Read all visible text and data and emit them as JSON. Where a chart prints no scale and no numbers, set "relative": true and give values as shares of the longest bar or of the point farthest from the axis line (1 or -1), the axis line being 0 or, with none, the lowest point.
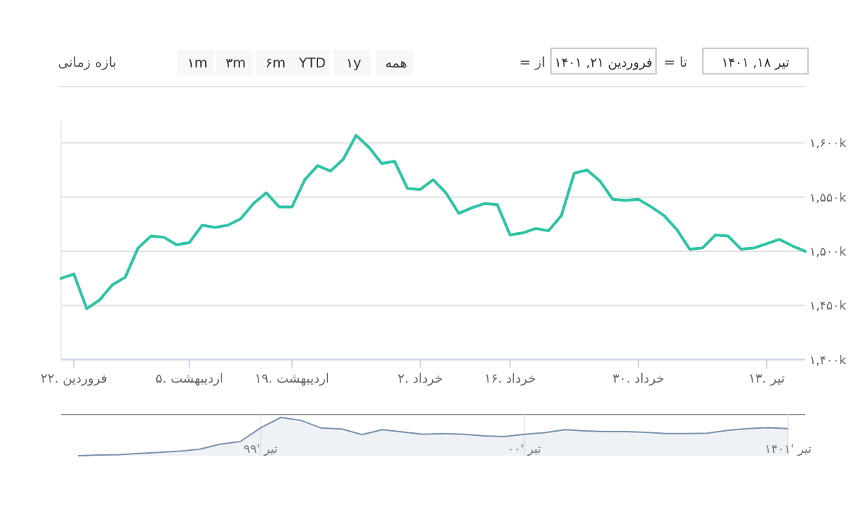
{
  "chart_data": [
    {
      "type": "line",
      "categories": [
        null,
        "۲۲. فروردین",
        null,
        null,
        null,
        null,
        null,
        null,
        null,
        null,
        "۵. اردیبهشت",
        null,
        null,
        null,
        null,
        null,
        null,
        null,
        "۱۹. اردیبهشت",
        null,
        null,
        null,
        null,
        null,
        null,
        null,
        null,
        null,
        "۲. خرداد",
        null,
        null,
        null,
        null,
        null,
        null,
        "۱۶. خرداد",
        null,
        null,
        null,
        null,
        null,
        null,
        null,
        null,
        null,
        "۳۰. خرداد",
        null,
        null,
        null,
        null,
        null,
        null,
        null,
        null,
        null,
        "۱۳. تیر",
        null,
        null,
        null
      ],
      "series": [
        {
          "color": "#2fc4a6",
          "values": [
            1475,
            1479,
            1447,
            1455,
            1469,
            1476,
            1503,
            1514,
            1513,
            1506,
            1508,
            1524,
            1522,
            1524,
            1530,
            1544,
            1554,
            1541,
            1541,
            1566,
            1579,
            1574,
            1585,
            1607,
            1596,
            1581,
            1583,
            1558,
            1557,
            1566,
            1554,
            1535,
            1540,
            1544,
            1543,
            1515,
            1517,
            1521,
            1519,
            1533,
            1572,
            1575,
            1565,
            1548,
            1547,
            1548,
            1541,
            1533,
            1520,
            1502,
            1503,
            1515,
            1514,
            1502,
            1503,
            1507,
            1511,
            1505,
            1500
          ]
        }
      ],
      "ylim": [
        1400,
        1620
      ],
      "yticks": [
        {
          "value": 1400,
          "label": "۱,۴۰۰k"
        },
        {
          "value": 1450,
          "label": "۱,۴۵۰k"
        },
        {
          "value": 1500,
          "label": "۱,۵۰۰k"
        },
        {
          "value": 1550,
          "label": "۱,۵۵۰k"
        },
        {
          "value": 1600,
          "label": "۱,۶۰۰k"
        }
      ],
      "grid": "y",
      "annotations": [
        "بازه زمانی",
        "۱m",
        "۳m",
        "۶m",
        "YTD",
        "۱y",
        "همه",
        "= از",
        "فروردین ۲۱, ۱۴۰۱",
        "= تا",
        "تیر ۱۸, ۱۴۰۱"
      ]
    },
    {
      "type": "area",
      "relative": true,
      "grid": "x",
      "categories": [
        null,
        null,
        null,
        null,
        null,
        null,
        null,
        null,
        null,
        "تیر '۹۹",
        null,
        null,
        null,
        null,
        null,
        null,
        null,
        null,
        null,
        null,
        null,
        null,
        "تیر '۰۰",
        null,
        null,
        null,
        null,
        null,
        null,
        null,
        null,
        null,
        null,
        null,
        null,
        "تیر '۱۴۰۱"
      ],
      "series": [
        {
          "color": "#7b93b0",
          "values": [
            0,
            0.02,
            0.03,
            0.06,
            0.09,
            0.12,
            0.17,
            0.3,
            0.37,
            0.73,
            1,
            0.92,
            0.72,
            0.7,
            0.55,
            0.68,
            0.62,
            0.56,
            0.58,
            0.56,
            0.52,
            0.5,
            0.56,
            0.6,
            0.68,
            0.65,
            0.63,
            0.63,
            0.61,
            0.58,
            0.58,
            0.59,
            0.66,
            0.71,
            0.73,
            0.71
          ]
        }
      ]
    }
  ]
}
